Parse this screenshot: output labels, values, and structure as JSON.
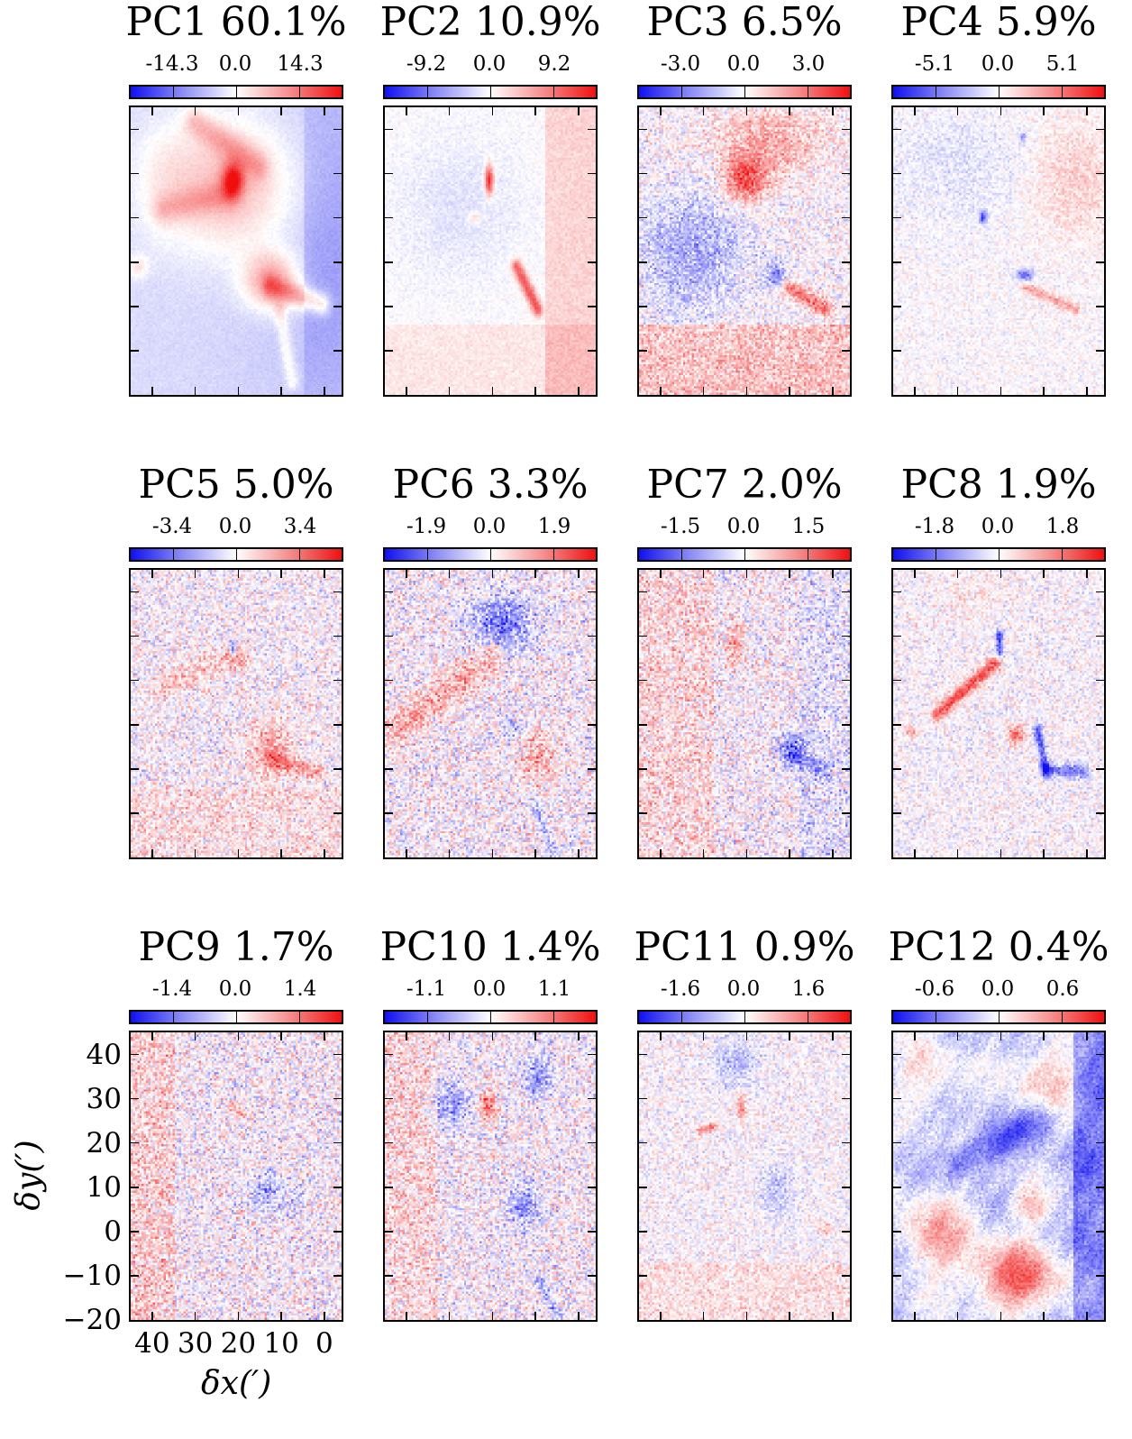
{
  "chart_data": {
    "type": "heatmap",
    "colormap": "bwr",
    "colors": {
      "negative": "#1010f0",
      "zero": "#ffffff",
      "positive": "#f01010"
    },
    "xlabel": "δx(′)",
    "ylabel": "δy(′)",
    "x_ticks": [
      "40",
      "30",
      "20",
      "10",
      "0"
    ],
    "y_ticks": [
      "40",
      "30",
      "20",
      "10",
      "0",
      "−10",
      "−20"
    ],
    "xlim": [
      45,
      -4
    ],
    "ylim": [
      -20,
      45
    ],
    "panels": [
      {
        "title": "PC1 60.1%",
        "ticks": [
          "-14.3",
          "0.0",
          "14.3"
        ],
        "range": [
          -14.3,
          14.3
        ],
        "mode": 1
      },
      {
        "title": "PC2 10.9%",
        "ticks": [
          "-9.2",
          "0.0",
          "9.2"
        ],
        "range": [
          -9.2,
          9.2
        ],
        "mode": 2
      },
      {
        "title": "PC3 6.5%",
        "ticks": [
          "-3.0",
          "0.0",
          "3.0"
        ],
        "range": [
          -3.0,
          3.0
        ],
        "mode": 3
      },
      {
        "title": "PC4 5.9%",
        "ticks": [
          "-5.1",
          "0.0",
          "5.1"
        ],
        "range": [
          -5.1,
          5.1
        ],
        "mode": 4
      },
      {
        "title": "PC5 5.0%",
        "ticks": [
          "-3.4",
          "0.0",
          "3.4"
        ],
        "range": [
          -3.4,
          3.4
        ],
        "mode": 5
      },
      {
        "title": "PC6 3.3%",
        "ticks": [
          "-1.9",
          "0.0",
          "1.9"
        ],
        "range": [
          -1.9,
          1.9
        ],
        "mode": 6
      },
      {
        "title": "PC7 2.0%",
        "ticks": [
          "-1.5",
          "0.0",
          "1.5"
        ],
        "range": [
          -1.5,
          1.5
        ],
        "mode": 7
      },
      {
        "title": "PC8 1.9%",
        "ticks": [
          "-1.8",
          "0.0",
          "1.8"
        ],
        "range": [
          -1.8,
          1.8
        ],
        "mode": 8
      },
      {
        "title": "PC9 1.7%",
        "ticks": [
          "-1.4",
          "0.0",
          "1.4"
        ],
        "range": [
          -1.4,
          1.4
        ],
        "mode": 9
      },
      {
        "title": "PC10 1.4%",
        "ticks": [
          "-1.1",
          "0.0",
          "1.1"
        ],
        "range": [
          -1.1,
          1.1
        ],
        "mode": 10
      },
      {
        "title": "PC11 0.9%",
        "ticks": [
          "-1.6",
          "0.0",
          "1.6"
        ],
        "range": [
          -1.6,
          1.6
        ],
        "mode": 11
      },
      {
        "title": "PC12 0.4%",
        "ticks": [
          "-0.6",
          "0.0",
          "0.6"
        ],
        "range": [
          -0.6,
          0.6
        ],
        "mode": 12
      }
    ]
  }
}
